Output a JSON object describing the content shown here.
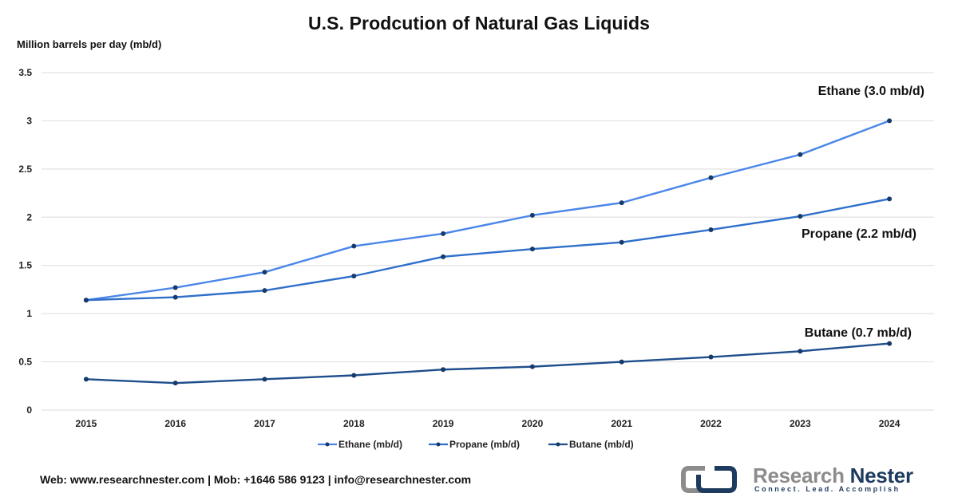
{
  "chart_data": {
    "type": "line",
    "title": "U.S. Prodcution of Natural Gas Liquids",
    "ylabel": "Million barrels per day (mb/d)",
    "xlabel": "",
    "categories": [
      "2015",
      "2016",
      "2017",
      "2018",
      "2019",
      "2020",
      "2021",
      "2022",
      "2023",
      "2024"
    ],
    "ylim": [
      0,
      3.5
    ],
    "yticks": [
      0,
      0.5,
      1,
      1.5,
      2,
      2.5,
      3,
      3.5
    ],
    "ytick_labels": [
      "0",
      "0.5",
      "1",
      "1.5",
      "2",
      "2.5",
      "3",
      "3.5"
    ],
    "grid": true,
    "legend_position": "bottom",
    "series": [
      {
        "name": "Ethane (mb/d)",
        "color": "#4a86e8",
        "values": [
          1.14,
          1.27,
          1.43,
          1.7,
          1.83,
          2.02,
          2.15,
          2.41,
          2.65,
          3.0
        ],
        "annotation": "Ethane (3.0 mb/d)"
      },
      {
        "name": "Propane (mb/d)",
        "color": "#2f6fcb",
        "values": [
          1.14,
          1.17,
          1.24,
          1.39,
          1.59,
          1.67,
          1.74,
          1.87,
          2.01,
          2.19
        ],
        "annotation": "Propane (2.2 mb/d)"
      },
      {
        "name": "Butane (mb/d)",
        "color": "#1f4e8c",
        "values": [
          0.32,
          0.28,
          0.32,
          0.36,
          0.42,
          0.45,
          0.5,
          0.55,
          0.61,
          0.69
        ],
        "annotation": "Butane (0.7 mb/d)"
      }
    ],
    "marker_color": "#163a6b"
  },
  "footer": {
    "contact": "Web: www.researchnester.com | Mob: +1646 586 9123 | info@researchnester.com"
  },
  "logo": {
    "brand_part1": "Research",
    "brand_part2": "Nester",
    "tagline": "Connect. Lead. Accomplish"
  }
}
